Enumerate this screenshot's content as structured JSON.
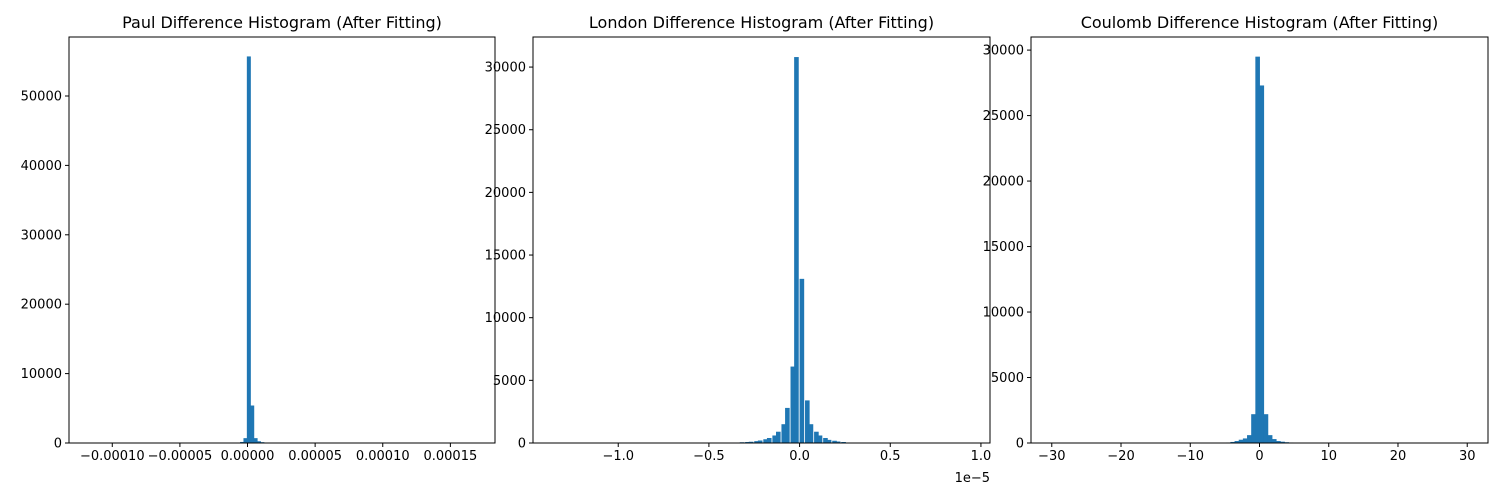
{
  "colors": {
    "bar": "#1f77b4",
    "axis": "#000000",
    "background": "#ffffff"
  },
  "chart_data": [
    {
      "type": "bar",
      "title": "Paul Difference Histogram (After Fitting)",
      "xlabel": "",
      "ylabel": "",
      "x_offset_label": "",
      "xlim": [
        -0.000132,
        0.000183
      ],
      "ylim": [
        0,
        58500
      ],
      "xticks": [
        -0.0001,
        -5e-05,
        0.0,
        5e-05,
        0.0001,
        0.00015
      ],
      "xtick_labels": [
        "−0.00010",
        "−0.00005",
        "0.00000",
        "0.00005",
        "0.00010",
        "0.00015"
      ],
      "yticks": [
        0,
        10000,
        20000,
        30000,
        40000,
        50000
      ],
      "ytick_labels": [
        "0",
        "10000",
        "20000",
        "30000",
        "40000",
        "50000"
      ],
      "grid": false,
      "bins": [
        [
          -8e-06,
          20
        ],
        [
          -5.5e-06,
          150
        ],
        [
          -3e-06,
          700
        ],
        [
          -5e-07,
          55700
        ],
        [
          2e-06,
          5400
        ],
        [
          4.5e-06,
          700
        ],
        [
          7e-06,
          250
        ],
        [
          9.5e-06,
          120
        ],
        [
          1.2e-05,
          60
        ]
      ]
    },
    {
      "type": "bar",
      "title": "London Difference Histogram (After Fitting)",
      "xlabel": "",
      "ylabel": "",
      "x_offset_label": "1e−5",
      "xlim": [
        -1.47,
        1.05
      ],
      "ylim": [
        0,
        32400
      ],
      "xticks": [
        -1.0,
        -0.5,
        0.0,
        0.5,
        1.0
      ],
      "xtick_labels": [
        "−1.0",
        "−0.5",
        "0.0",
        "0.5",
        "1.0"
      ],
      "yticks": [
        0,
        5000,
        10000,
        15000,
        20000,
        25000,
        30000
      ],
      "ytick_labels": [
        "0",
        "5000",
        "10000",
        "15000",
        "20000",
        "25000",
        "30000"
      ],
      "grid": false,
      "bins": [
        [
          -0.38,
          20
        ],
        [
          -0.35,
          40
        ],
        [
          -0.33,
          60
        ],
        [
          -0.3,
          80
        ],
        [
          -0.28,
          100
        ],
        [
          -0.25,
          150
        ],
        [
          -0.23,
          200
        ],
        [
          -0.2,
          300
        ],
        [
          -0.18,
          400
        ],
        [
          -0.15,
          600
        ],
        [
          -0.13,
          900
        ],
        [
          -0.1,
          1500
        ],
        [
          -0.08,
          2800
        ],
        [
          -0.05,
          6100
        ],
        [
          -0.03,
          30800
        ],
        [
          0.0,
          13100
        ],
        [
          0.03,
          3400
        ],
        [
          0.05,
          1500
        ],
        [
          0.08,
          900
        ],
        [
          0.1,
          600
        ],
        [
          0.13,
          400
        ],
        [
          0.15,
          250
        ],
        [
          0.18,
          180
        ],
        [
          0.2,
          120
        ],
        [
          0.23,
          80
        ],
        [
          0.25,
          40
        ]
      ]
    },
    {
      "type": "bar",
      "title": "Coulomb Difference Histogram (After Fitting)",
      "xlabel": "",
      "ylabel": "",
      "x_offset_label": "",
      "xlim": [
        -33.0,
        33.0
      ],
      "ylim": [
        0,
        31000
      ],
      "xticks": [
        -30,
        -20,
        -10,
        0,
        10,
        20,
        30
      ],
      "xtick_labels": [
        "−30",
        "−20",
        "−10",
        "0",
        "10",
        "20",
        "30"
      ],
      "yticks": [
        0,
        5000,
        10000,
        15000,
        20000,
        25000,
        30000
      ],
      "ytick_labels": [
        "0",
        "5000",
        "10000",
        "15000",
        "20000",
        "25000",
        "30000"
      ],
      "grid": false,
      "bins": [
        [
          -4.8,
          40
        ],
        [
          -4.2,
          80
        ],
        [
          -3.6,
          150
        ],
        [
          -3.0,
          250
        ],
        [
          -2.4,
          350
        ],
        [
          -1.8,
          600
        ],
        [
          -1.2,
          2200
        ],
        [
          -0.6,
          29500
        ],
        [
          0.0,
          27300
        ],
        [
          0.6,
          2200
        ],
        [
          1.2,
          600
        ],
        [
          1.8,
          300
        ],
        [
          2.4,
          150
        ],
        [
          3.0,
          100
        ],
        [
          3.6,
          60
        ],
        [
          4.2,
          40
        ]
      ]
    }
  ]
}
